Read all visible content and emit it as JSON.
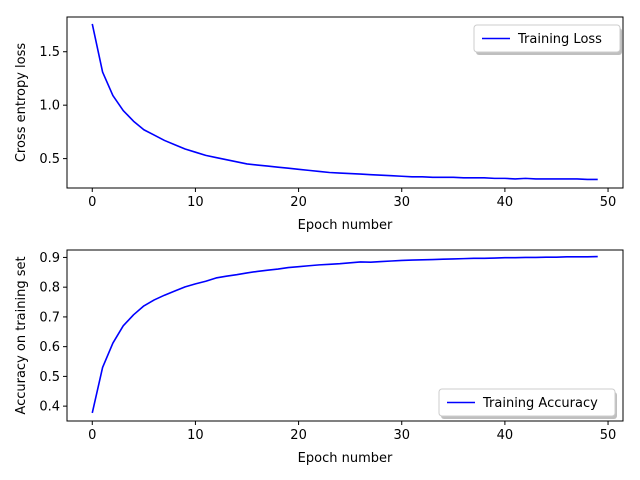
{
  "chart_data": [
    {
      "type": "line",
      "xlabel": "Epoch number",
      "ylabel": "Cross entropy loss",
      "xlim": [
        -2.45,
        51.45
      ],
      "ylim": [
        0.225,
        1.825
      ],
      "xticks": [
        0,
        10,
        20,
        30,
        40,
        50
      ],
      "xtick_labels": [
        "0",
        "10",
        "20",
        "30",
        "40",
        "50"
      ],
      "yticks": [
        0.5,
        1.0,
        1.5
      ],
      "ytick_labels": [
        "0.5",
        "1.0",
        "1.5"
      ],
      "legend_position": "top-right",
      "series": [
        {
          "name": "Training Loss",
          "color": "#0000ff",
          "x": [
            0,
            1,
            2,
            3,
            4,
            5,
            6,
            7,
            8,
            9,
            10,
            11,
            12,
            13,
            14,
            15,
            16,
            17,
            18,
            19,
            20,
            21,
            22,
            23,
            24,
            25,
            26,
            27,
            28,
            29,
            30,
            31,
            32,
            33,
            34,
            35,
            36,
            37,
            38,
            39,
            40,
            41,
            42,
            43,
            44,
            45,
            46,
            47,
            48,
            49
          ],
          "values": [
            1.76,
            1.31,
            1.09,
            0.95,
            0.85,
            0.77,
            0.72,
            0.67,
            0.63,
            0.59,
            0.56,
            0.53,
            0.51,
            0.49,
            0.47,
            0.45,
            0.44,
            0.43,
            0.42,
            0.41,
            0.4,
            0.39,
            0.38,
            0.37,
            0.365,
            0.36,
            0.355,
            0.35,
            0.345,
            0.34,
            0.335,
            0.33,
            0.33,
            0.325,
            0.325,
            0.325,
            0.32,
            0.32,
            0.32,
            0.315,
            0.315,
            0.31,
            0.315,
            0.31,
            0.31,
            0.31,
            0.31,
            0.31,
            0.305,
            0.305
          ]
        }
      ]
    },
    {
      "type": "line",
      "xlabel": "Epoch number",
      "ylabel": "Accuracy on training set",
      "xlim": [
        -2.45,
        51.45
      ],
      "ylim": [
        0.35,
        0.925
      ],
      "xticks": [
        0,
        10,
        20,
        30,
        40,
        50
      ],
      "xtick_labels": [
        "0",
        "10",
        "20",
        "30",
        "40",
        "50"
      ],
      "yticks": [
        0.4,
        0.5,
        0.6,
        0.7,
        0.8,
        0.9
      ],
      "ytick_labels": [
        "0.4",
        "0.5",
        "0.6",
        "0.7",
        "0.8",
        "0.9"
      ],
      "legend_position": "bottom-right",
      "series": [
        {
          "name": "Training Accuracy",
          "color": "#0000ff",
          "x": [
            0,
            1,
            2,
            3,
            4,
            5,
            6,
            7,
            8,
            9,
            10,
            11,
            12,
            13,
            14,
            15,
            16,
            17,
            18,
            19,
            20,
            21,
            22,
            23,
            24,
            25,
            26,
            27,
            28,
            29,
            30,
            31,
            32,
            33,
            34,
            35,
            36,
            37,
            38,
            39,
            40,
            41,
            42,
            43,
            44,
            45,
            46,
            47,
            48,
            49
          ],
          "values": [
            0.377,
            0.53,
            0.612,
            0.67,
            0.707,
            0.737,
            0.757,
            0.773,
            0.787,
            0.801,
            0.811,
            0.82,
            0.831,
            0.837,
            0.842,
            0.848,
            0.853,
            0.857,
            0.861,
            0.866,
            0.869,
            0.872,
            0.875,
            0.877,
            0.879,
            0.882,
            0.885,
            0.884,
            0.886,
            0.888,
            0.89,
            0.891,
            0.892,
            0.893,
            0.894,
            0.895,
            0.896,
            0.897,
            0.897,
            0.898,
            0.899,
            0.899,
            0.9,
            0.9,
            0.901,
            0.901,
            0.902,
            0.902,
            0.902,
            0.903
          ]
        }
      ]
    }
  ]
}
